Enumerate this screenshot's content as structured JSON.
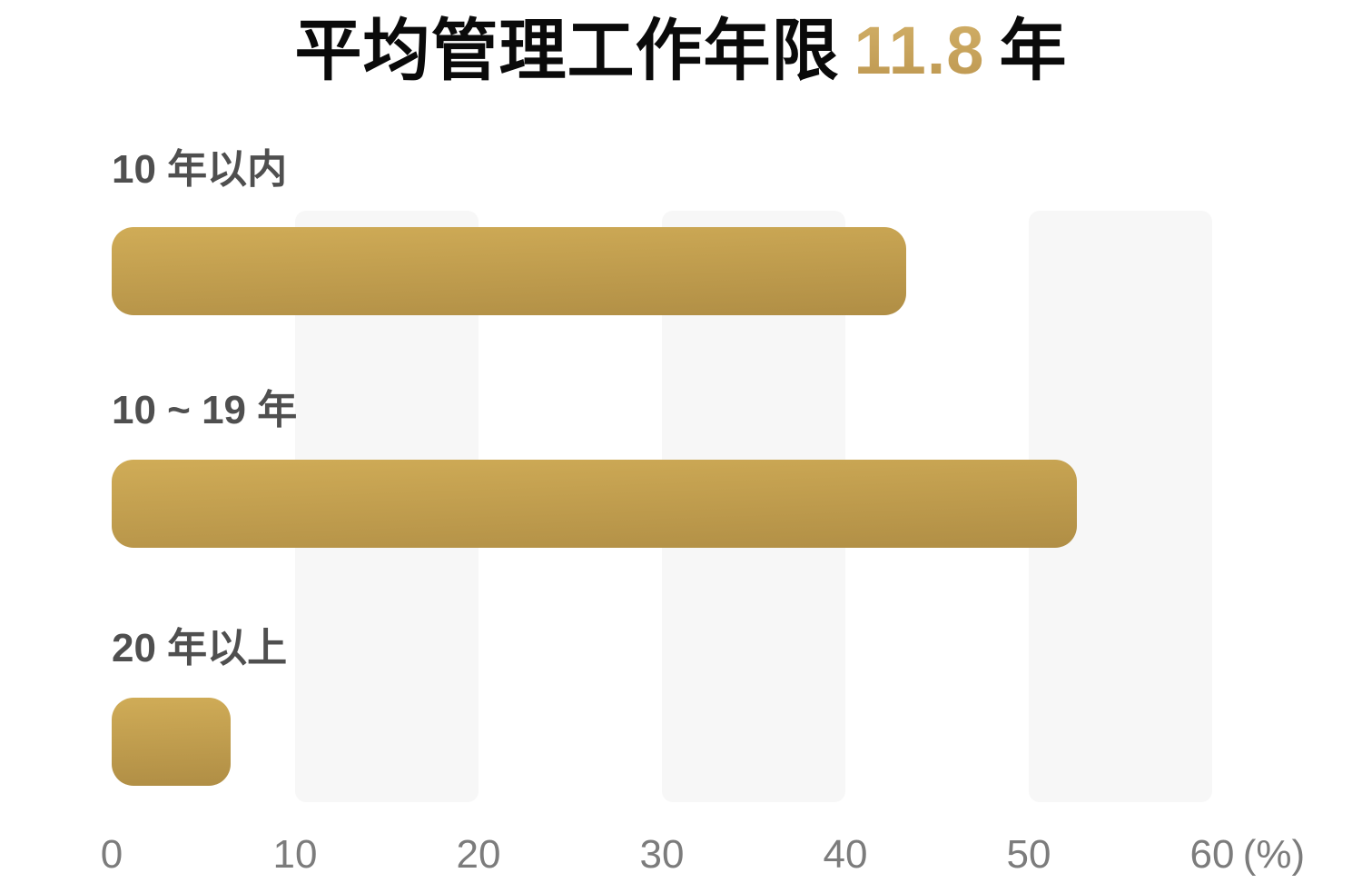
{
  "title": {
    "prefix": "平均管理工作年限",
    "highlight": "11.8",
    "suffix": "年"
  },
  "chart_data": {
    "type": "bar",
    "orientation": "horizontal",
    "title": "平均管理工作年限 11.8 年",
    "categories": [
      "10 年以内",
      "10 ~ 19 年",
      "20 年以上"
    ],
    "values": [
      43.3,
      52.6,
      6.5
    ],
    "unit": "%",
    "xlabel": "(%)",
    "ylabel": "",
    "xlim": [
      0,
      60
    ],
    "x_ticks": [
      "0",
      "10",
      "20",
      "30",
      "40",
      "50",
      "60"
    ],
    "x_axis_unit_label": "(%)",
    "grid": false,
    "legend": "none",
    "background_bands": [
      [
        10,
        20
      ],
      [
        30,
        40
      ],
      [
        50,
        60
      ]
    ],
    "colors": {
      "bar_gradient_top": "#d0ac57",
      "bar_gradient_bottom": "#b08e45",
      "background_band": "#f7f7f7",
      "title_text": "#0a0a0a",
      "title_highlight": "#c6a159",
      "category_label": "#4f4f4f",
      "axis_label": "#7c7c7c",
      "page_background": "#ffffff"
    }
  }
}
